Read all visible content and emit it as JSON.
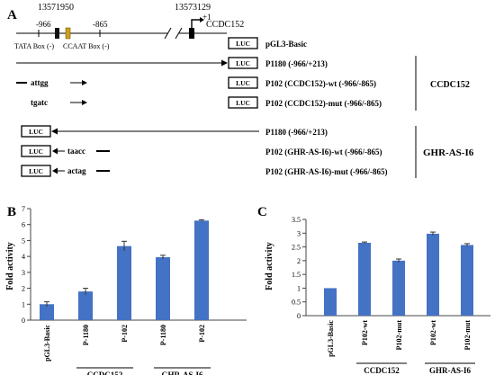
{
  "panel_a": {
    "label": "A",
    "coord_left": "13571950",
    "coord_right": "13573129",
    "pos_966": "-966",
    "pos_865": "-865",
    "plus1": "+1",
    "gene": "CCDC152",
    "tata": "TATA Box (-)",
    "ccaat": "CCAAT Box (-)",
    "luc": "LUC",
    "constructs_top": [
      {
        "seq": "",
        "name": "pGL3-Basic"
      },
      {
        "seq": "",
        "name": "P1180 (-966/+213)"
      },
      {
        "seq": "attgg",
        "name": "P102 (CCDC152)-wt  (-966/-865)"
      },
      {
        "seq": "tgatc",
        "name": "P102 (CCDC152)-mut  (-966/-865)"
      }
    ],
    "group_top": "CCDC152",
    "constructs_bottom": [
      {
        "seq": "",
        "name": "P1180 (-966/+213)"
      },
      {
        "seq": "taacc",
        "name": "P102 (GHR-AS-I6)-wt  (-966/-865)"
      },
      {
        "seq": "actag",
        "name": "P102 (GHR-AS-I6)-mut  (-966/-865)"
      }
    ],
    "group_bottom": "GHR-AS-I6"
  },
  "chart_data": [
    {
      "panel": "B",
      "type": "bar",
      "ylabel": "Fold activity",
      "ylim": [
        0,
        7
      ],
      "yticks": [
        0,
        1,
        2,
        3,
        4,
        5,
        6,
        7
      ],
      "categories": [
        "pGL3-Basic",
        "P-1180",
        "P-102",
        "P-1180",
        "P-102"
      ],
      "values": [
        1.0,
        1.8,
        4.65,
        3.95,
        6.25
      ],
      "errors": [
        0.15,
        0.2,
        0.3,
        0.12,
        0.05
      ],
      "groups": [
        {
          "label": "CCDC152",
          "from": 1,
          "to": 2
        },
        {
          "label": "GHR-AS-I6",
          "from": 3,
          "to": 4
        }
      ],
      "color": "#4472c4"
    },
    {
      "panel": "C",
      "type": "bar",
      "ylabel": "Fold activity",
      "ylim": [
        0,
        3.5
      ],
      "yticks": [
        "0",
        "0.5",
        "1",
        "1.5",
        "2",
        "2.5",
        "3",
        "3.5"
      ],
      "categories": [
        "pGL3-Basic",
        "P102-wt",
        "P102-mut",
        "P102-wt",
        "P102-mut"
      ],
      "values": [
        1.0,
        2.65,
        2.0,
        2.98,
        2.57
      ],
      "errors": [
        0.0,
        0.03,
        0.06,
        0.06,
        0.05
      ],
      "groups": [
        {
          "label": "CCDC152",
          "from": 1,
          "to": 2
        },
        {
          "label": "GHR-AS-I6",
          "from": 3,
          "to": 4
        }
      ],
      "color": "#4472c4"
    }
  ]
}
